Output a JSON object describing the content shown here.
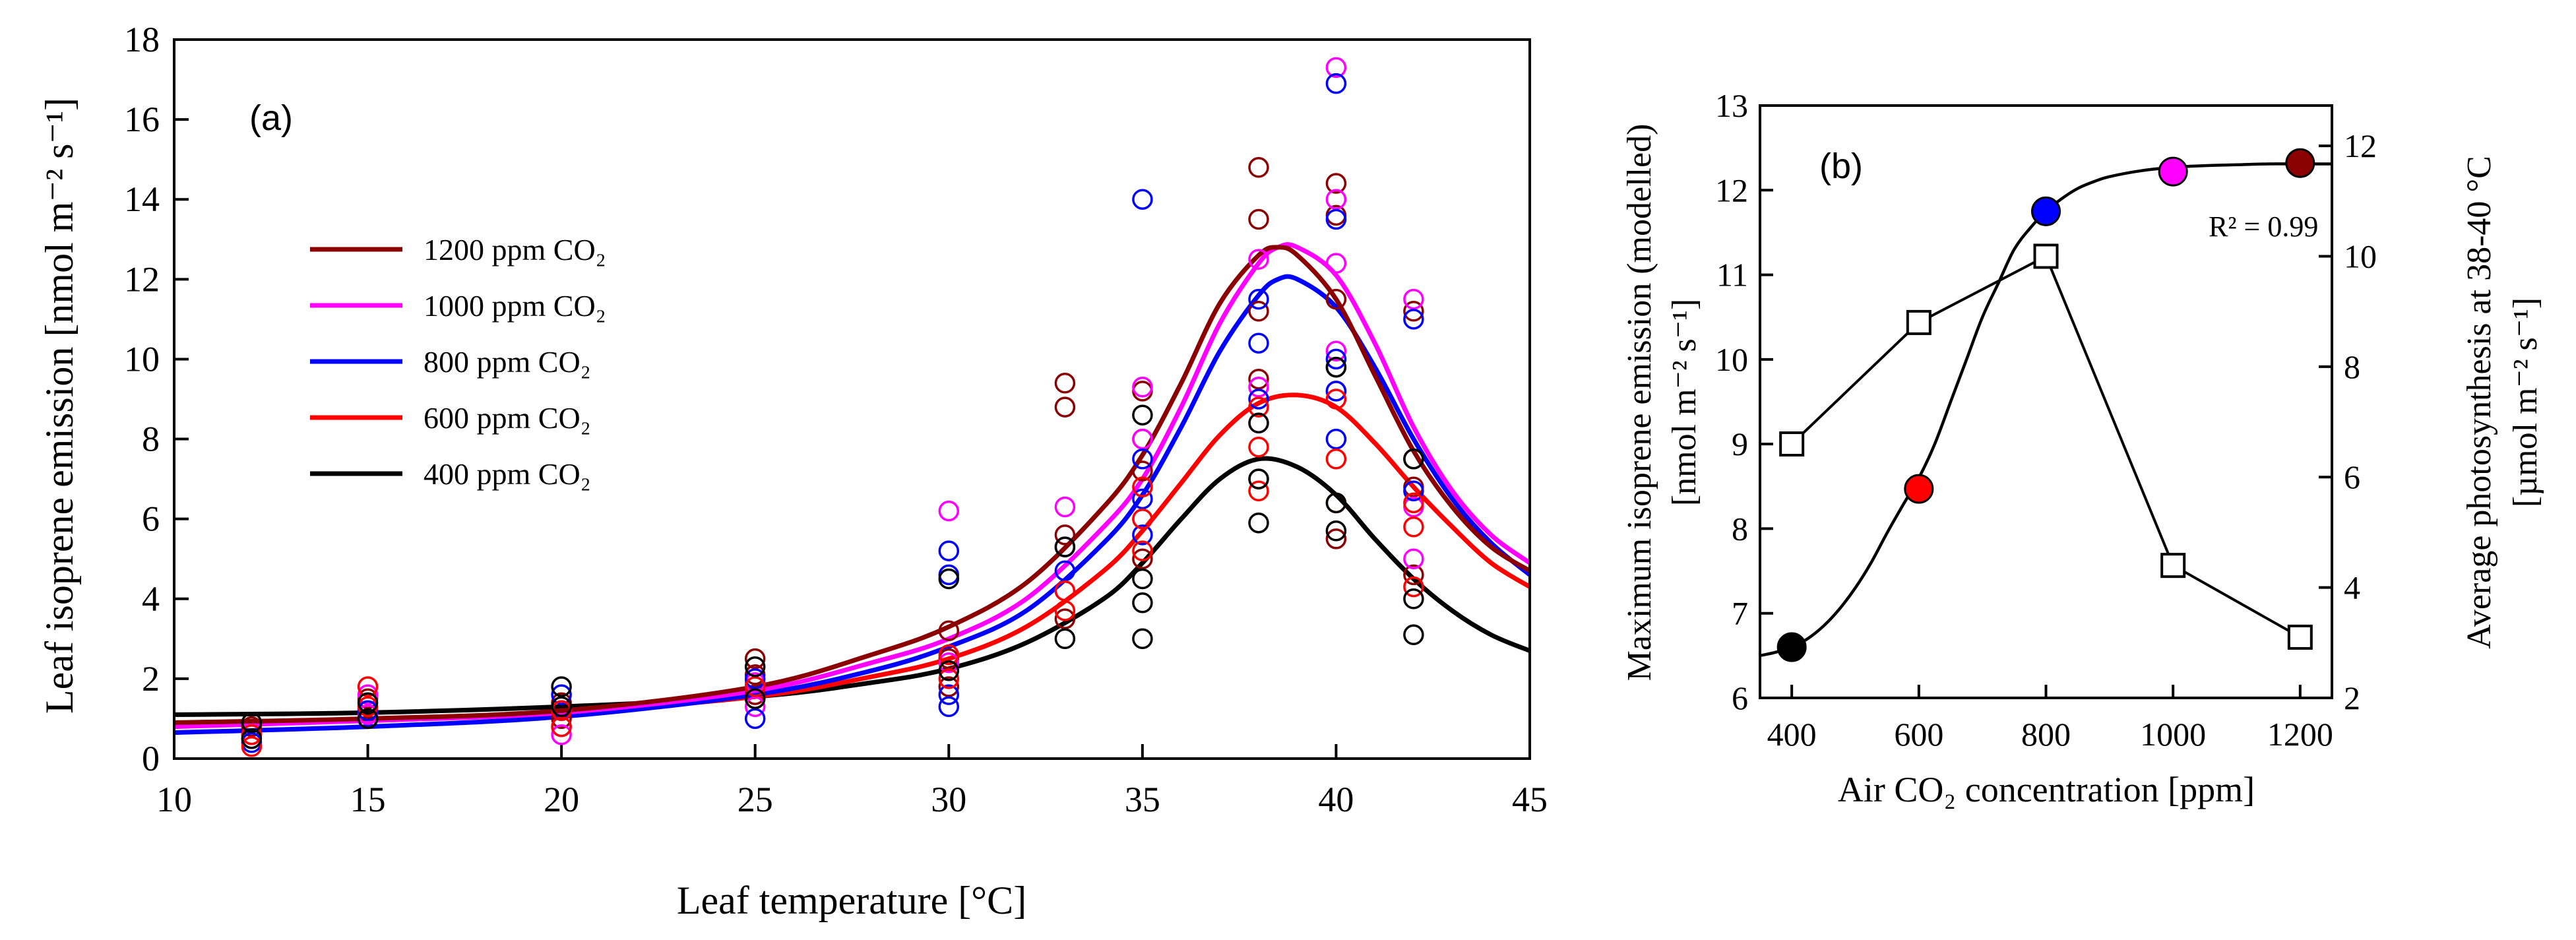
{
  "chart_data": [
    {
      "id": "a",
      "panel_label": "(a)",
      "type": "scatter",
      "xlabel": "Leaf temperature [°C]",
      "ylabel": "Leaf isoprene emission [nmol m⁻² s⁻¹]",
      "xlim": [
        10,
        45
      ],
      "ylim": [
        0,
        18
      ],
      "xticks": [
        10,
        15,
        20,
        25,
        30,
        35,
        40,
        45
      ],
      "yticks": [
        0,
        2,
        4,
        6,
        8,
        10,
        12,
        14,
        16,
        18
      ],
      "legend_position": "top-left",
      "series": [
        {
          "name": "1200 ppm CO₂",
          "color": "#8b0000",
          "curve": {
            "x": [
              10,
              15,
              20,
              25,
              28,
              30,
              32,
              34,
              35,
              36,
              37,
              38,
              38.5,
              39,
              40,
              41,
              42,
              43,
              44,
              45
            ],
            "y": [
              0.9,
              1.0,
              1.2,
              1.8,
              2.6,
              3.3,
              4.4,
              6.3,
              7.6,
              9.4,
              11.4,
              12.6,
              12.8,
              12.6,
              11.5,
              9.6,
              7.7,
              6.3,
              5.3,
              4.7
            ]
          },
          "points": {
            "x": [
              12,
              12,
              15,
              15,
              20,
              20,
              25,
              25,
              25,
              30,
              30,
              30,
              33,
              33,
              33,
              33,
              35,
              35,
              35,
              35,
              38,
              38,
              38,
              38,
              38,
              40,
              40,
              40,
              40,
              40,
              42,
              42,
              42,
              42
            ],
            "y": [
              0.5,
              0.8,
              1.0,
              1.5,
              1.0,
              1.4,
              1.6,
              2.1,
              2.5,
              1.8,
              2.5,
              3.2,
              3.5,
              5.6,
              8.8,
              9.4,
              5.0,
              7.2,
              8.0,
              9.2,
              7.0,
              9.5,
              11.2,
              13.5,
              14.8,
              5.5,
              9.8,
              11.5,
              13.6,
              14.4,
              4.6,
              6.8,
              7.5,
              11.2
            ]
          }
        },
        {
          "name": "1000 ppm CO₂",
          "color": "#ff00ff",
          "curve": {
            "x": [
              10,
              15,
              20,
              25,
              28,
              30,
              32,
              34,
              35,
              36,
              37,
              38,
              38.5,
              39,
              40,
              41,
              42,
              43,
              44,
              45
            ],
            "y": [
              0.8,
              0.95,
              1.15,
              1.7,
              2.4,
              3.0,
              4.0,
              5.8,
              7.0,
              8.8,
              10.9,
              12.4,
              12.8,
              12.8,
              12.1,
              10.4,
              8.3,
              6.7,
              5.6,
              4.9
            ]
          },
          "points": {
            "x": [
              12,
              15,
              15,
              20,
              20,
              25,
              25,
              30,
              30,
              33,
              33,
              35,
              35,
              35,
              38,
              38,
              38,
              40,
              40,
              40,
              40,
              40,
              42,
              42,
              42
            ],
            "y": [
              0.6,
              1.1,
              1.6,
              0.6,
              1.2,
              1.3,
              1.9,
              2.4,
              6.2,
              4.2,
              6.3,
              6.0,
              8.0,
              9.3,
              8.4,
              9.3,
              12.5,
              9.2,
              10.2,
              12.4,
              14.0,
              17.3,
              5.0,
              6.3,
              11.5
            ]
          }
        },
        {
          "name": "800 ppm CO₂",
          "color": "#0000ff",
          "curve": {
            "x": [
              10,
              15,
              20,
              25,
              28,
              30,
              32,
              34,
              35,
              36,
              37,
              38,
              38.5,
              39,
              40,
              41,
              42,
              43,
              44,
              45
            ],
            "y": [
              0.65,
              0.8,
              1.05,
              1.6,
              2.2,
              2.8,
              3.7,
              5.4,
              6.6,
              8.3,
              10.2,
              11.6,
              12.0,
              12.0,
              11.3,
              9.8,
              8.0,
              6.5,
              5.4,
              4.6
            ]
          },
          "points": {
            "x": [
              12,
              15,
              20,
              20,
              25,
              25,
              30,
              30,
              30,
              30,
              33,
              33,
              35,
              35,
              35,
              35,
              38,
              38,
              38,
              40,
              40,
              40,
              40,
              40,
              42,
              42
            ],
            "y": [
              0.4,
              1.2,
              0.8,
              1.6,
              1.0,
              2.0,
              1.3,
              1.6,
              4.6,
              5.2,
              4.7,
              5.3,
              5.6,
              6.5,
              7.5,
              14.0,
              9.0,
              10.4,
              11.5,
              8.0,
              9.2,
              10.0,
              13.5,
              16.9,
              6.7,
              11.0
            ]
          }
        },
        {
          "name": "600 ppm CO₂",
          "color": "#ff0000",
          "curve": {
            "x": [
              10,
              15,
              20,
              25,
              28,
              30,
              32,
              34,
              35,
              36,
              37,
              38,
              39,
              40,
              41,
              42,
              43,
              44,
              45
            ],
            "y": [
              0.85,
              0.95,
              1.15,
              1.55,
              2.05,
              2.5,
              3.3,
              4.7,
              5.7,
              6.9,
              8.1,
              8.9,
              9.1,
              8.8,
              7.9,
              6.8,
              5.8,
              4.9,
              4.3
            ]
          },
          "points": {
            "x": [
              12,
              12,
              15,
              15,
              20,
              20,
              25,
              25,
              30,
              30,
              33,
              33,
              35,
              35,
              35,
              38,
              38,
              38,
              40,
              40,
              40,
              42,
              42,
              42
            ],
            "y": [
              0.3,
              0.6,
              1.3,
              1.8,
              0.8,
              1.2,
              1.5,
              1.8,
              2.0,
              2.6,
              3.7,
              4.2,
              5.2,
              6.0,
              6.8,
              6.7,
              7.8,
              8.8,
              6.4,
              7.5,
              9.0,
              4.3,
              5.8,
              6.4
            ]
          }
        },
        {
          "name": "400 ppm CO₂",
          "color": "#000000",
          "curve": {
            "x": [
              10,
              15,
              20,
              25,
              28,
              30,
              32,
              34,
              35,
              36,
              37,
              38,
              39,
              40,
              41,
              42,
              43,
              44,
              45
            ],
            "y": [
              1.1,
              1.15,
              1.3,
              1.55,
              1.9,
              2.25,
              2.9,
              4.0,
              4.9,
              6.0,
              7.0,
              7.5,
              7.3,
              6.6,
              5.5,
              4.5,
              3.7,
              3.1,
              2.7
            ]
          },
          "points": {
            "x": [
              12,
              12,
              15,
              15,
              20,
              20,
              25,
              25,
              30,
              30,
              33,
              33,
              35,
              35,
              35,
              35,
              38,
              38,
              38,
              40,
              40,
              40,
              42,
              42,
              42
            ],
            "y": [
              0.5,
              0.9,
              1.0,
              1.4,
              1.3,
              1.8,
              1.5,
              2.3,
              2.2,
              4.5,
              3.0,
              5.3,
              3.0,
              3.9,
              4.5,
              8.6,
              5.9,
              7.0,
              8.4,
              5.7,
              6.4,
              9.8,
              3.1,
              4.0,
              7.5
            ]
          }
        }
      ]
    },
    {
      "id": "b",
      "panel_label": "(b)",
      "type": "scatter",
      "xlabel": "Air CO₂ concentration [ppm]",
      "ylabel_left_line1": "Maximum isoprene emission (modelled)",
      "ylabel_left_line2": "[nmol m⁻² s⁻¹]",
      "ylabel_right_line1": "Average photosynthesis at 38-40 °C",
      "ylabel_right_line2": "[µmol m⁻² s⁻¹]",
      "xlim": [
        350,
        1250
      ],
      "ylim_left": [
        6,
        13
      ],
      "ylim_right": [
        2,
        12.73
      ],
      "xticks": [
        400,
        600,
        800,
        1000,
        1200
      ],
      "yticks_left": [
        6,
        7,
        8,
        9,
        10,
        11,
        12,
        13
      ],
      "yticks_right": [
        2,
        4,
        6,
        8,
        10,
        12
      ],
      "annotation": "R² = 0.99",
      "emission_points": {
        "x": [
          400,
          600,
          800,
          1000,
          1200
        ],
        "y": [
          6.6,
          8.47,
          11.75,
          12.22,
          12.32
        ],
        "colors": [
          "#000000",
          "#ff0000",
          "#0000ff",
          "#ff00ff",
          "#8b0000"
        ]
      },
      "emission_fit": {
        "x": [
          350,
          375,
          400,
          425,
          450,
          475,
          500,
          525,
          550,
          575,
          600,
          625,
          650,
          675,
          700,
          725,
          750,
          775,
          800,
          825,
          850,
          875,
          900,
          950,
          1000,
          1050,
          1100,
          1150,
          1200,
          1250
        ],
        "y": [
          6.5,
          6.54,
          6.6,
          6.7,
          6.85,
          7.05,
          7.3,
          7.6,
          7.95,
          8.28,
          8.6,
          9.0,
          9.5,
          10.0,
          10.5,
          10.9,
          11.3,
          11.55,
          11.75,
          11.9,
          12.02,
          12.1,
          12.16,
          12.23,
          12.27,
          12.29,
          12.3,
          12.31,
          12.31,
          12.31
        ]
      },
      "photosynthesis_points": {
        "x": [
          400,
          600,
          800,
          1000,
          1200
        ],
        "y": [
          6.6,
          8.8,
          10.0,
          4.4,
          3.1
        ]
      }
    }
  ]
}
